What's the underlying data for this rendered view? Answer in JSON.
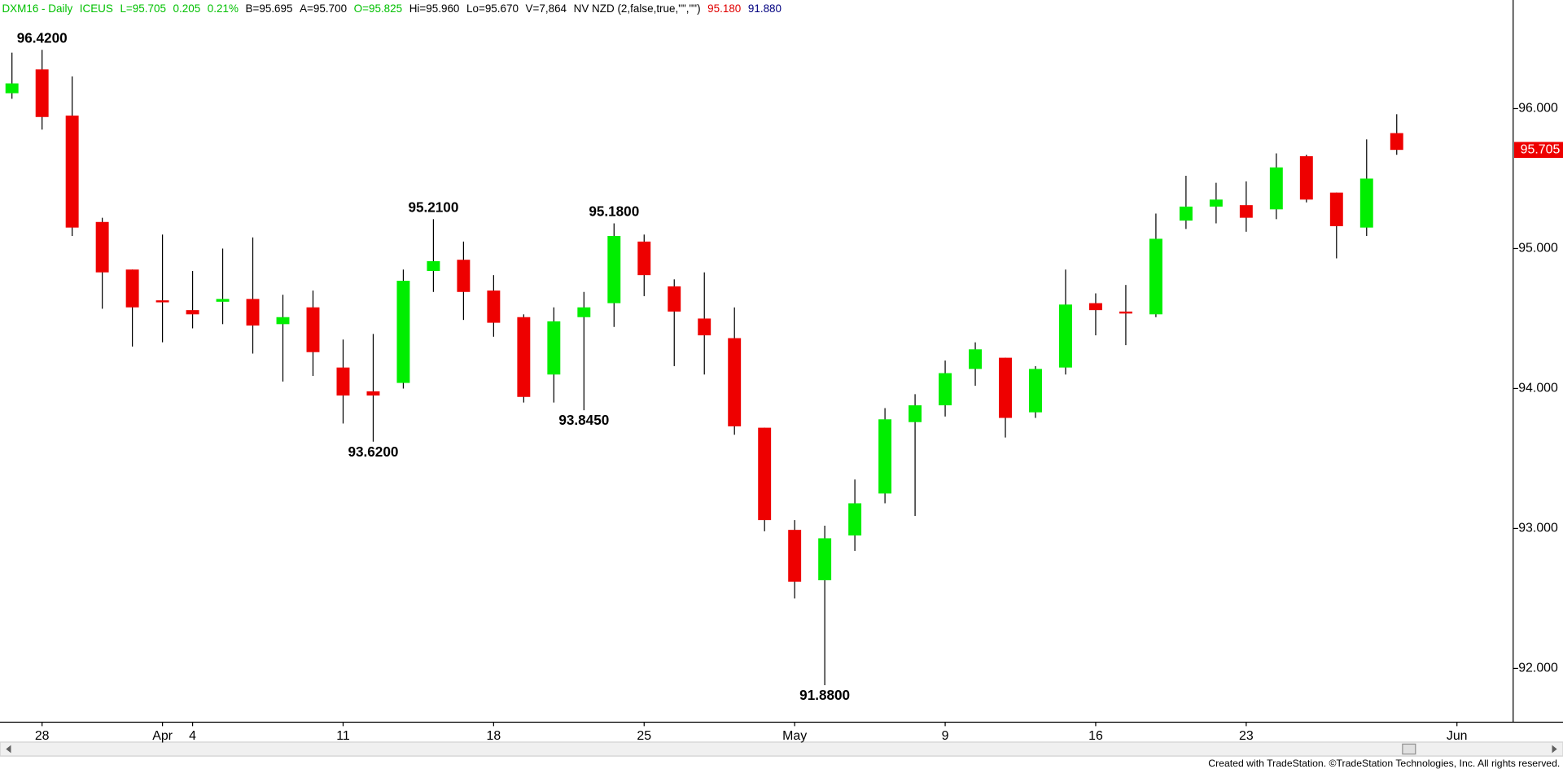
{
  "chart_data": {
    "type": "candlestick",
    "header": [
      {
        "text": "DXM16 - Daily",
        "color": "#00c000"
      },
      {
        "text": "ICEUS",
        "color": "#00c000"
      },
      {
        "text": "L=95.705",
        "color": "#00c000"
      },
      {
        "text": "0.205",
        "color": "#00c000"
      },
      {
        "text": "0.21%",
        "color": "#00c000"
      },
      {
        "text": "B=95.695",
        "color": "#000000"
      },
      {
        "text": "A=95.700",
        "color": "#000000"
      },
      {
        "text": "O=95.825",
        "color": "#00c000"
      },
      {
        "text": "Hi=95.960",
        "color": "#000000"
      },
      {
        "text": "Lo=95.670",
        "color": "#000000"
      },
      {
        "text": "V=7,864",
        "color": "#000000"
      },
      {
        "text": "NV NZD (2,false,true,\"\",\"\")",
        "color": "#000000"
      },
      {
        "text": "95.180",
        "color": "#e00000"
      },
      {
        "text": "91.880",
        "color": "#000080"
      }
    ],
    "categories": [
      null,
      "28",
      null,
      null,
      null,
      "Apr",
      "4",
      null,
      null,
      null,
      null,
      "11",
      null,
      null,
      null,
      null,
      "18",
      null,
      null,
      null,
      null,
      "25",
      null,
      null,
      null,
      null,
      "May",
      null,
      null,
      null,
      null,
      "9",
      null,
      null,
      null,
      null,
      "16",
      null,
      null,
      null,
      null,
      "23",
      null,
      null,
      null,
      null,
      null,
      null,
      "Jun"
    ],
    "open": [
      96.11,
      96.28,
      95.95,
      95.19,
      94.85,
      94.63,
      94.56,
      94.62,
      94.64,
      94.46,
      94.58,
      94.15,
      93.98,
      94.04,
      94.84,
      94.92,
      94.7,
      94.51,
      94.1,
      94.51,
      94.61,
      95.05,
      94.73,
      94.5,
      94.36,
      93.72,
      92.99,
      92.63,
      92.95,
      93.25,
      93.76,
      93.88,
      94.14,
      94.22,
      93.83,
      94.15,
      94.61,
      94.55,
      94.53,
      95.2,
      95.3,
      95.31,
      95.28,
      95.66,
      95.4,
      95.15,
      95.825,
      null,
      null
    ],
    "high": [
      96.4,
      96.42,
      96.23,
      95.22,
      94.85,
      95.1,
      94.84,
      95.0,
      95.08,
      94.67,
      94.7,
      94.35,
      94.39,
      94.85,
      95.21,
      95.05,
      94.81,
      94.53,
      94.58,
      94.69,
      95.18,
      95.1,
      94.78,
      94.83,
      94.58,
      93.72,
      93.06,
      93.02,
      93.35,
      93.86,
      93.96,
      94.2,
      94.33,
      94.22,
      94.16,
      94.85,
      94.68,
      94.74,
      95.25,
      95.52,
      95.47,
      95.48,
      95.68,
      95.67,
      95.4,
      95.78,
      95.96,
      null,
      null
    ],
    "low": [
      96.07,
      95.85,
      95.09,
      94.57,
      94.3,
      94.33,
      94.43,
      94.46,
      94.25,
      94.05,
      94.09,
      93.75,
      93.62,
      94.0,
      94.69,
      94.49,
      94.37,
      93.9,
      93.9,
      93.845,
      94.44,
      94.66,
      94.16,
      94.1,
      93.67,
      92.98,
      92.5,
      91.88,
      92.84,
      93.18,
      93.09,
      93.8,
      94.02,
      93.65,
      93.79,
      94.1,
      94.38,
      94.31,
      94.51,
      95.14,
      95.18,
      95.12,
      95.21,
      95.33,
      94.93,
      95.09,
      95.67,
      null,
      null
    ],
    "close": [
      96.18,
      95.94,
      95.15,
      94.83,
      94.58,
      94.62,
      94.53,
      94.64,
      94.45,
      94.51,
      94.26,
      93.95,
      93.95,
      94.77,
      94.91,
      94.69,
      94.47,
      93.94,
      94.48,
      94.58,
      95.09,
      94.81,
      94.55,
      94.38,
      93.73,
      93.06,
      92.62,
      92.93,
      93.18,
      93.78,
      93.88,
      94.11,
      94.28,
      93.79,
      94.14,
      94.6,
      94.56,
      94.54,
      95.07,
      95.3,
      95.35,
      95.22,
      95.58,
      95.35,
      95.16,
      95.5,
      95.705,
      null,
      null
    ],
    "up_color": "#00ee00",
    "down_color": "#ee0000",
    "ylim": [
      91.616,
      96.776
    ],
    "yticks": [
      {
        "value": 92,
        "label": "92.000"
      },
      {
        "value": 93,
        "label": "93.000"
      },
      {
        "value": 94,
        "label": "94.000"
      },
      {
        "value": 95,
        "label": "95.000"
      },
      {
        "value": 96,
        "label": "96.000"
      }
    ],
    "last_price": 95.705,
    "last_price_color": "#ee0000",
    "annotations": [
      {
        "value": 96.42,
        "label": "96.4200",
        "at": 1,
        "position": "above"
      },
      {
        "value": 95.21,
        "label": "95.2100",
        "at": 14,
        "position": "above"
      },
      {
        "value": 95.18,
        "label": "95.1800",
        "at": 20,
        "position": "above"
      },
      {
        "value": 93.62,
        "label": "93.6200",
        "at": 12,
        "position": "below"
      },
      {
        "value": 93.845,
        "label": "93.8450",
        "at": 19,
        "position": "below"
      },
      {
        "value": 91.88,
        "label": "91.8800",
        "at": 27,
        "position": "below"
      }
    ],
    "footer": "Created with TradeStation. ©TradeStation Technologies, Inc. All rights reserved."
  }
}
